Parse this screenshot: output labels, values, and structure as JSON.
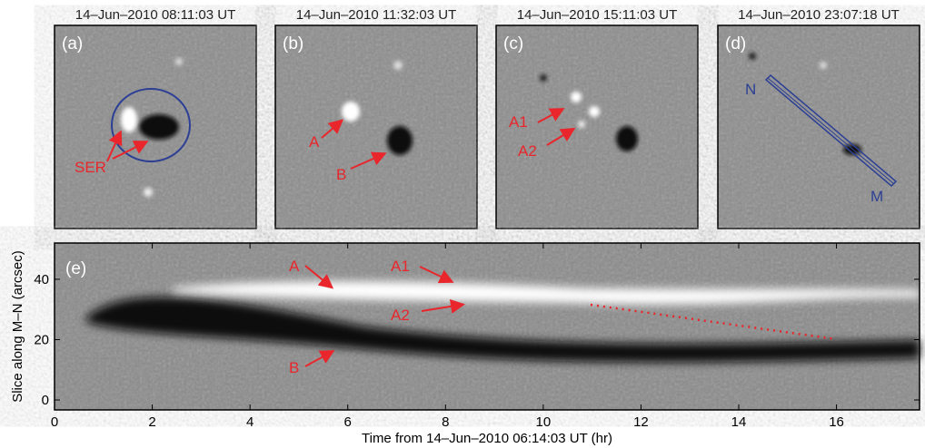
{
  "figure": {
    "panels": [
      {
        "time": "14–Jun–2010 08:11:03 UT",
        "label": "(a)",
        "annotations": [
          "SER"
        ]
      },
      {
        "time": "14–Jun–2010 11:32:03 UT",
        "label": "(b)",
        "annotations": [
          "A",
          "B"
        ]
      },
      {
        "time": "14–Jun–2010 15:11:03 UT",
        "label": "(c)",
        "annotations": [
          "A1",
          "A2"
        ]
      },
      {
        "time": "14–Jun–2010 23:07:18 UT",
        "label": "(d)",
        "annotations": [
          "N",
          "M"
        ]
      }
    ],
    "slice": {
      "label": "(e)",
      "xlabel": "Time from 14–Jun–2010 06:14:03 UT (hr)",
      "ylabel": "Slice along M–N (arcsec)",
      "xlim": [
        0,
        17.7
      ],
      "ylim": [
        -3.3,
        52
      ],
      "xticks": [
        0,
        2,
        4,
        6,
        8,
        10,
        12,
        14,
        16
      ],
      "yticks": [
        0,
        20,
        40
      ],
      "annotations": [
        "A",
        "A1",
        "A2",
        "B"
      ]
    }
  }
}
